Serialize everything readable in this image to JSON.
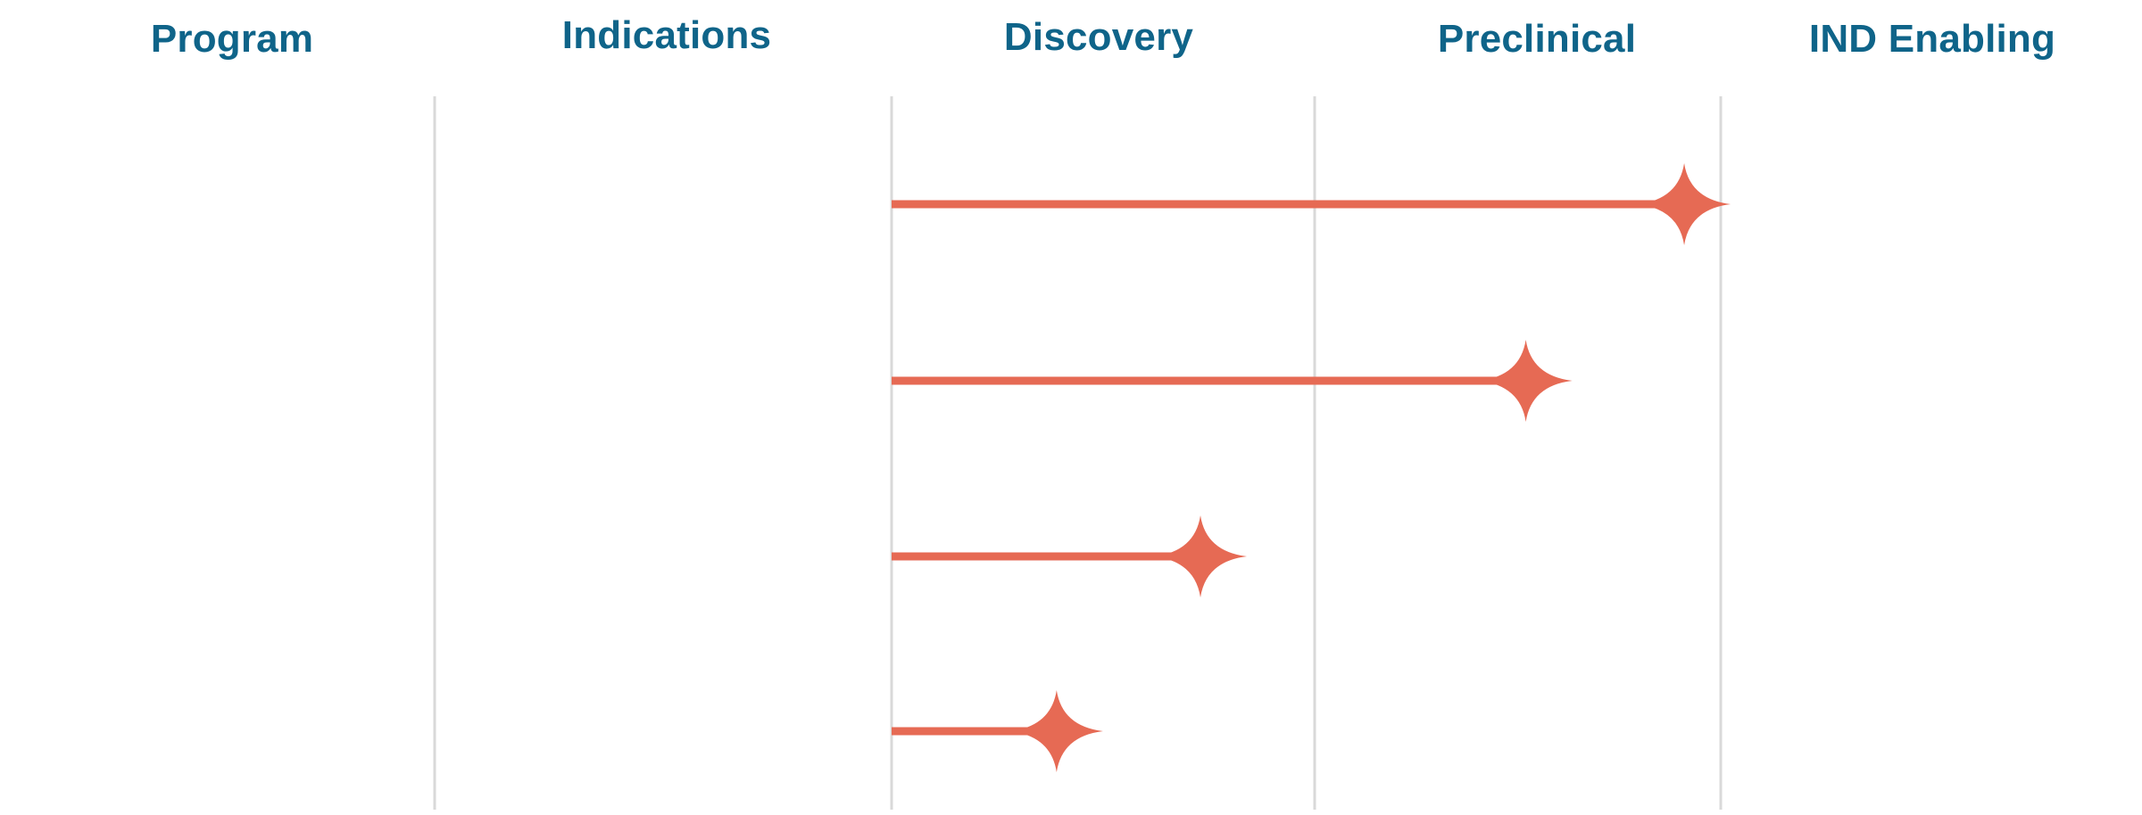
{
  "headers": {
    "program": "Program",
    "indications": "Indications",
    "discovery": "Discovery",
    "preclinical": "Preclinical",
    "ind_enabling": "IND Enabling"
  },
  "colors": {
    "header_text": "#0f6489",
    "bar": "#e66a54",
    "divider": "#d9d9d9"
  },
  "chart_data": {
    "type": "bar",
    "orientation": "horizontal",
    "stages": [
      "Discovery",
      "Preclinical",
      "IND Enabling"
    ],
    "value_unit": "stage progress (0 = start of Discovery, 1 = end of Discovery, 2 = end of Preclinical)",
    "xlim": [
      0,
      2
    ],
    "series": [
      {
        "values": [
          1.91,
          1.52,
          0.73,
          0.39
        ]
      }
    ],
    "marker": "four-point-star",
    "grid": true
  }
}
